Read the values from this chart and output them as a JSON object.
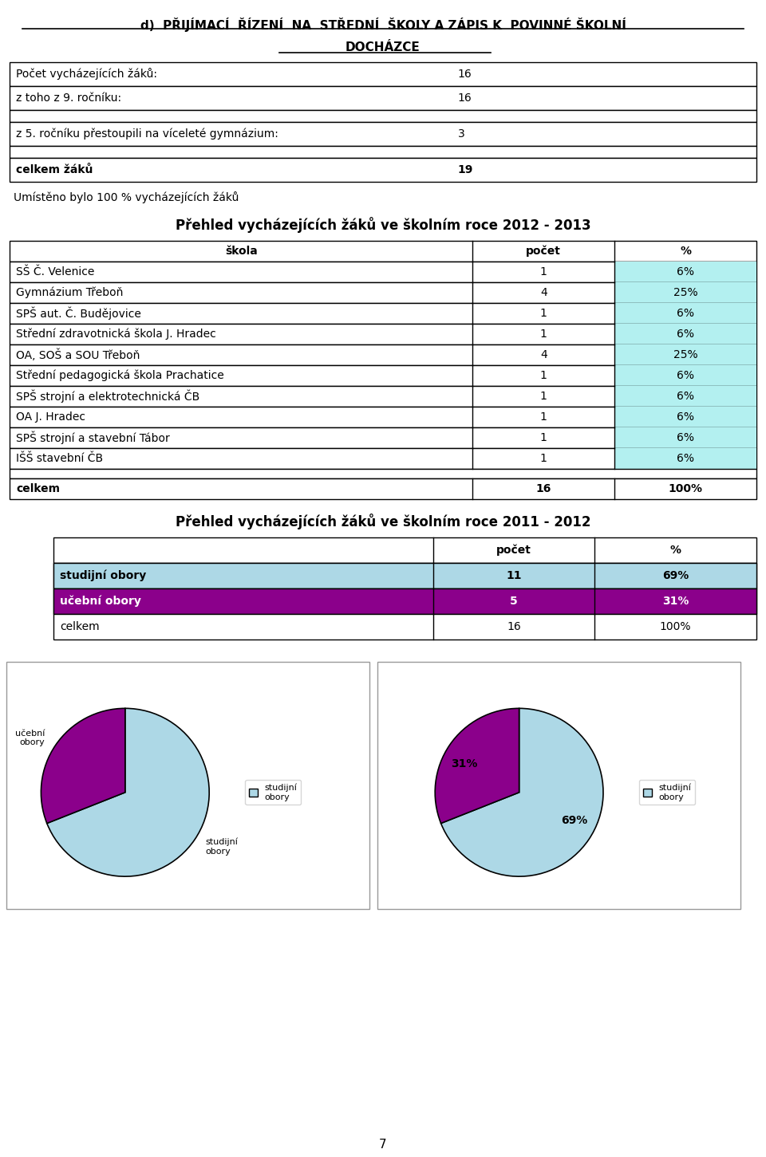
{
  "title_line1": "d)  PŘIJÍMACÍ  ŘÍZENÍ  NA  STŘEDNÍ  ŠKOLY A ZÁPIS K  POVINNÉ ŠKOLNÍ",
  "title_line2": "DOCHÁZCE",
  "info_rows": [
    [
      "Počet vycházejících žáků:",
      "16",
      false
    ],
    [
      "z toho z 9. ročníku:",
      "16",
      false
    ],
    [
      "",
      "",
      false
    ],
    [
      "z 5. ročníku přestoupili na víceleté gymnázium:",
      "3",
      false
    ],
    [
      "",
      "",
      false
    ],
    [
      "celkem žáků",
      "19",
      true
    ]
  ],
  "umisteno_text": "Umístěno bylo 100 % vycházejících žáků",
  "table1_title": "Přehled vycházejících žáků ve školním roce 2012 - 2013",
  "table1_header": [
    "škola",
    "počet",
    "%"
  ],
  "table1_rows": [
    [
      "SŠ Č. Velenice",
      "1",
      "6%"
    ],
    [
      "Gymnázium Třeboň",
      "4",
      "25%"
    ],
    [
      "SPŠ aut. Č. Budějovice",
      "1",
      "6%"
    ],
    [
      "Střední zdravotnická škola J. Hradec",
      "1",
      "6%"
    ],
    [
      "OA, SOŠ a SOU Třeboň",
      "4",
      "25%"
    ],
    [
      "Střední pedagogická škola Prachatice",
      "1",
      "6%"
    ],
    [
      "SPŠ strojní a elektrotechnická ČB",
      "1",
      "6%"
    ],
    [
      "OA J. Hradec",
      "1",
      "6%"
    ],
    [
      "SPŠ strojní a stavební Tábor",
      "1",
      "6%"
    ],
    [
      "IŠŠ stavební ČB",
      "1",
      "6%"
    ]
  ],
  "table1_footer": [
    "celkem",
    "16",
    "100%"
  ],
  "table1_pct_color": "#b3f0f0",
  "table2_title": "Přehled vycházejících žáků ve školním roce 2011 - 2012",
  "table2_header": [
    "",
    "počet",
    "%"
  ],
  "table2_rows": [
    [
      "studijní obory",
      "11",
      "69%",
      "#add8e6",
      "black"
    ],
    [
      "učební obory",
      "5",
      "31%",
      "#8b008b",
      "white"
    ]
  ],
  "table2_footer": [
    "celkem",
    "16",
    "100%"
  ],
  "pie_colors": [
    "#add8e6",
    "#8b008b"
  ],
  "pie1_values": [
    69,
    31
  ],
  "pie1_labels": [
    "studijní\nobory",
    "učební\nobory"
  ],
  "pie2_values": [
    69,
    31
  ],
  "pie2_labels": [
    "69%",
    "31%"
  ],
  "legend_label": "studijní\nobory",
  "bg_color": "#ffffff",
  "page_number": "7"
}
